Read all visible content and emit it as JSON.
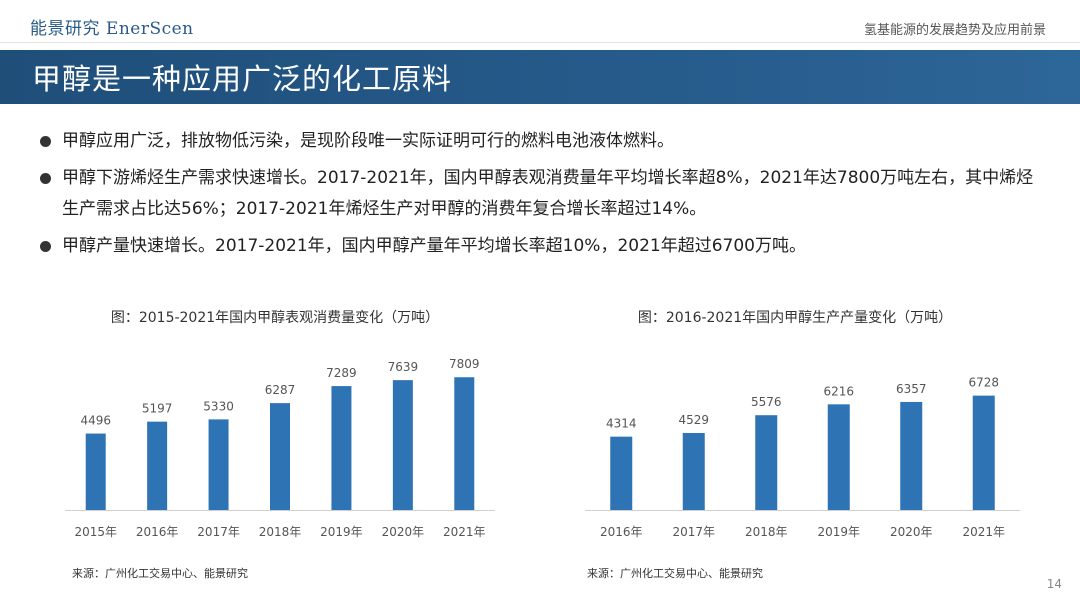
{
  "header": {
    "logo": "能景研究 EnerScen",
    "doc_title": "氢基能源的发展趋势及应用前景"
  },
  "title": "甲醇是一种应用广泛的化工原料",
  "bullets": [
    "甲醇应用广泛，排放物低污染，是现阶段唯一实际证明可行的燃料电池液体燃料。",
    "甲醇下游烯烃生产需求快速增长。2017-2021年，国内甲醇表观消费量年平均增长率超8%，2021年达7800万吨左右，其中烯烃生产需求占比达56%；2017-2021年烯烃生产对甲醇的消费年复合增长率超过14%。",
    "甲醇产量快速增长。2017-2021年，国内甲醇产量年平均增长率超10%，2021年超过6700万吨。"
  ],
  "chart_data": [
    {
      "type": "bar",
      "title": "图：2015-2021年国内甲醇表观消费量变化（万吨）",
      "categories": [
        "2015年",
        "2016年",
        "2017年",
        "2018年",
        "2019年",
        "2020年",
        "2021年"
      ],
      "values": [
        4496,
        5197,
        5330,
        6287,
        7289,
        7639,
        7809
      ],
      "xlabel": "",
      "ylabel": "",
      "ylim": [
        0,
        9000
      ],
      "grid": false,
      "source": "来源：广州化工交易中心、能景研究"
    },
    {
      "type": "bar",
      "title": "图：2016-2021年国内甲醇生产产量变化（万吨）",
      "categories": [
        "2016年",
        "2017年",
        "2018年",
        "2019年",
        "2020年",
        "2021年"
      ],
      "values": [
        4314,
        4529,
        5576,
        6216,
        6357,
        6728
      ],
      "xlabel": "",
      "ylabel": "",
      "ylim": [
        0,
        9000
      ],
      "grid": false,
      "source": "来源：广州化工交易中心、能景研究"
    }
  ],
  "page_number": "14",
  "colors": {
    "title_bar": "#1f4e79",
    "bar": "#2e74b5",
    "logo": "#2a5b88"
  }
}
